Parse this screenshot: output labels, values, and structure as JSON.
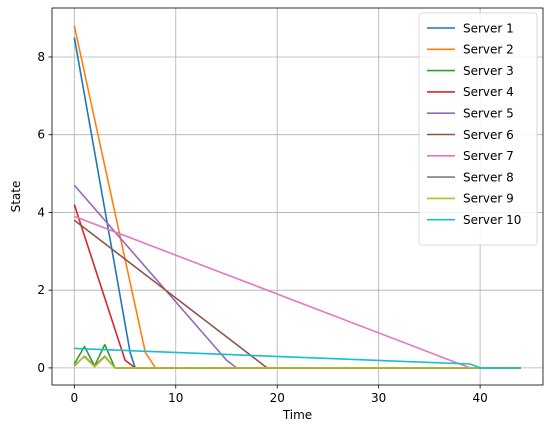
{
  "chart_data": {
    "type": "line",
    "title": "",
    "xlabel": "Time",
    "ylabel": "State",
    "xlim": [
      -2.2,
      46.2
    ],
    "ylim": [
      -0.44,
      9.26
    ],
    "xticks": [
      0,
      10,
      20,
      30,
      40
    ],
    "yticks": [
      0,
      2,
      4,
      6,
      8
    ],
    "grid": true,
    "legend": "upper-right",
    "series": [
      {
        "name": "Server 1",
        "color": "#1f77b4",
        "x": [
          0,
          5.5,
          6,
          44
        ],
        "y": [
          8.5,
          0.4,
          0,
          0
        ]
      },
      {
        "name": "Server 2",
        "color": "#ff7f0e",
        "x": [
          0,
          7,
          8,
          44
        ],
        "y": [
          8.8,
          0.4,
          0,
          0
        ]
      },
      {
        "name": "Server 3",
        "color": "#2ca02c",
        "x": [
          0,
          1,
          2,
          3,
          4,
          44
        ],
        "y": [
          0.1,
          0.55,
          0.05,
          0.6,
          0,
          0
        ]
      },
      {
        "name": "Server 4",
        "color": "#d62728",
        "x": [
          0,
          5,
          6,
          44
        ],
        "y": [
          4.2,
          0.2,
          0,
          0
        ]
      },
      {
        "name": "Server 5",
        "color": "#9467bd",
        "x": [
          0,
          15,
          16,
          44
        ],
        "y": [
          4.7,
          0.2,
          0,
          0
        ]
      },
      {
        "name": "Server 6",
        "color": "#8c564b",
        "x": [
          0,
          19,
          44
        ],
        "y": [
          3.8,
          0,
          0
        ]
      },
      {
        "name": "Server 7",
        "color": "#e377c2",
        "x": [
          0,
          39,
          44
        ],
        "y": [
          3.9,
          0,
          0
        ]
      },
      {
        "name": "Server 8",
        "color": "#7f7f7f",
        "x": [
          0,
          1,
          2,
          3,
          4,
          44
        ],
        "y": [
          0.05,
          0.3,
          0.05,
          0.3,
          0,
          0
        ]
      },
      {
        "name": "Server 9",
        "color": "#bcbd22",
        "x": [
          0,
          1,
          2,
          3,
          4,
          44
        ],
        "y": [
          0.08,
          0.28,
          0.03,
          0.28,
          0,
          0
        ]
      },
      {
        "name": "Server 10",
        "color": "#17becf",
        "x": [
          0,
          39,
          40,
          44
        ],
        "y": [
          0.5,
          0.1,
          0,
          0
        ]
      }
    ]
  }
}
